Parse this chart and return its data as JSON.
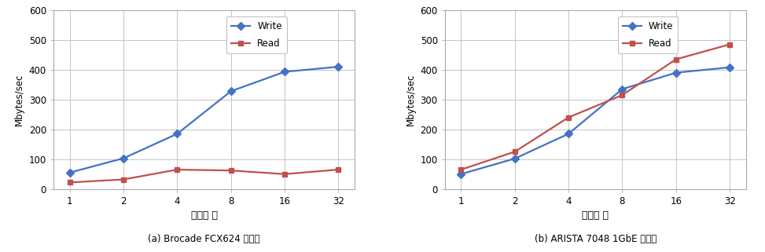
{
  "chart_a": {
    "title": "(a) Brocade FCX624 스위치",
    "x_labels": [
      "1",
      "2",
      "4",
      "8",
      "16",
      "32"
    ],
    "write": [
      55,
      103,
      185,
      328,
      393,
      410
    ],
    "read": [
      22,
      32,
      65,
      62,
      50,
      65
    ],
    "ylabel": "Mbytes/sec",
    "xlabel": "태스크 수",
    "ylim": [
      0,
      600
    ],
    "yticks": [
      0,
      100,
      200,
      300,
      400,
      500,
      600
    ],
    "write_color": "#4472C4",
    "read_color": "#C0504D"
  },
  "chart_b": {
    "title": "(b) ARISTA 7048 1GbE 스위치",
    "x_labels": [
      "1",
      "2",
      "4",
      "8",
      "16",
      "32"
    ],
    "write": [
      50,
      102,
      185,
      335,
      390,
      408
    ],
    "read": [
      65,
      125,
      240,
      315,
      435,
      485
    ],
    "ylabel": "Mbytes/sec",
    "xlabel": "태스크 수",
    "ylim": [
      0,
      600
    ],
    "yticks": [
      0,
      100,
      200,
      300,
      400,
      500,
      600
    ],
    "write_color": "#4472C4",
    "read_color": "#C0504D"
  },
  "legend_write": "Write",
  "legend_read": "Read",
  "bg_color": "#FFFFFF",
  "grid_color": "#BBBBBB",
  "markersize": 5,
  "linewidth": 1.6
}
